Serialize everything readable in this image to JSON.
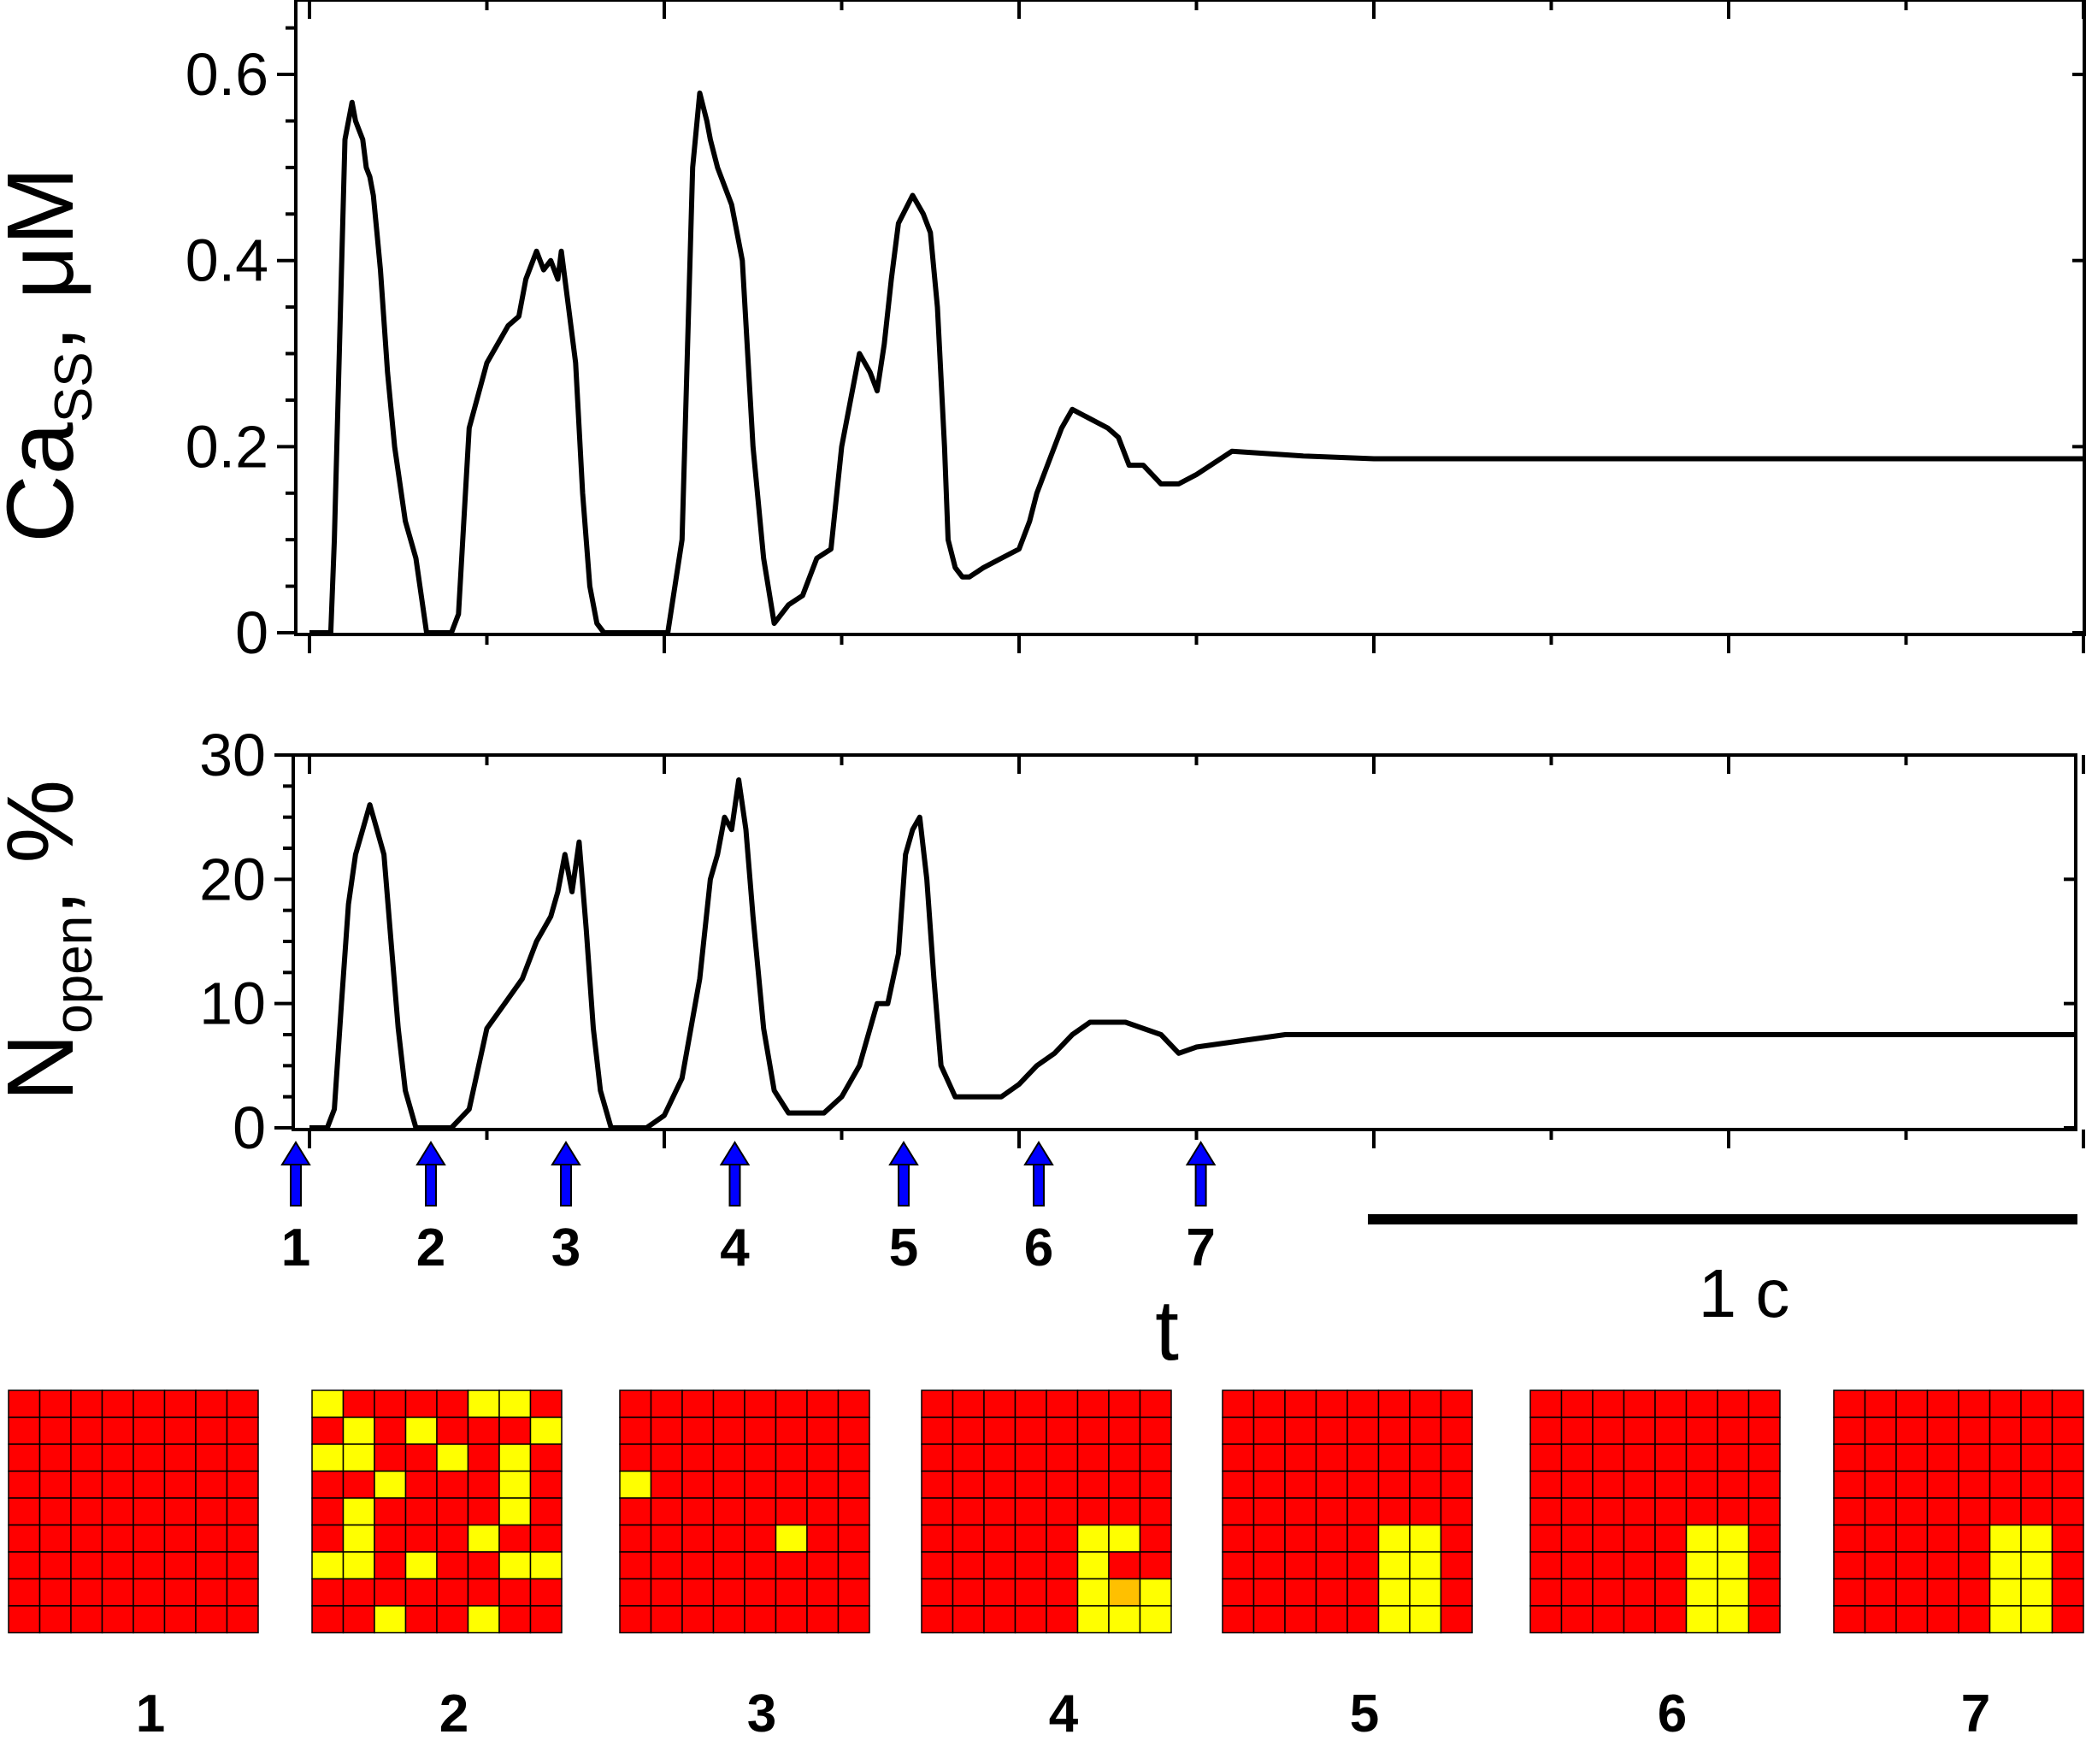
{
  "chart_data": [
    {
      "type": "line",
      "ylabel": {
        "main": "Ca",
        "sub": "SS",
        "suffix": ", μM"
      },
      "ylim": [
        0,
        0.68
      ],
      "yticks": [
        {
          "value": 0,
          "label": "0"
        },
        {
          "value": 0.2,
          "label": "0.2"
        },
        {
          "value": 0.4,
          "label": "0.4"
        },
        {
          "value": 0.6,
          "label": "0.6"
        }
      ],
      "xlim": [
        0,
        5
      ],
      "series": [
        {
          "x": [
            0.0,
            0.06,
            0.07,
            0.1,
            0.12,
            0.13,
            0.14,
            0.15,
            0.16,
            0.17,
            0.18,
            0.19,
            0.2,
            0.22,
            0.24,
            0.27,
            0.3,
            0.33,
            0.36,
            0.38,
            0.4,
            0.42,
            0.45,
            0.5,
            0.56,
            0.59,
            0.61,
            0.64,
            0.66,
            0.68,
            0.7,
            0.71,
            0.73,
            0.75,
            0.77,
            0.79,
            0.81,
            0.83,
            0.86,
            0.9,
            0.95,
            1.01,
            1.05,
            1.08,
            1.1,
            1.12,
            1.13,
            1.15,
            1.17,
            1.19,
            1.22,
            1.25,
            1.28,
            1.31,
            1.33,
            1.35,
            1.37,
            1.39,
            1.43,
            1.47,
            1.5,
            1.55,
            1.58,
            1.6,
            1.62,
            1.64,
            1.66,
            1.7,
            1.73,
            1.75,
            1.77,
            1.79,
            1.8,
            1.82,
            1.84,
            1.86,
            1.9,
            1.95,
            2.0,
            2.03,
            2.05,
            2.08,
            2.12,
            2.15,
            2.2,
            2.25,
            2.28,
            2.31,
            2.35,
            2.4,
            2.45,
            2.5,
            2.6,
            2.8,
            3.0,
            3.5,
            4.0,
            4.5,
            5.0
          ],
          "y": [
            0.0,
            0.0,
            0.1,
            0.53,
            0.57,
            0.55,
            0.54,
            0.53,
            0.5,
            0.49,
            0.47,
            0.43,
            0.39,
            0.28,
            0.2,
            0.12,
            0.08,
            0.0,
            0.0,
            0.0,
            0.0,
            0.02,
            0.22,
            0.29,
            0.33,
            0.34,
            0.38,
            0.41,
            0.39,
            0.4,
            0.38,
            0.41,
            0.35,
            0.29,
            0.15,
            0.05,
            0.01,
            0.0,
            0.0,
            0.0,
            0.0,
            0.0,
            0.1,
            0.5,
            0.58,
            0.55,
            0.53,
            0.5,
            0.48,
            0.46,
            0.4,
            0.2,
            0.08,
            0.01,
            0.02,
            0.03,
            0.035,
            0.04,
            0.08,
            0.09,
            0.2,
            0.3,
            0.28,
            0.26,
            0.31,
            0.38,
            0.44,
            0.47,
            0.45,
            0.43,
            0.35,
            0.2,
            0.1,
            0.07,
            0.06,
            0.06,
            0.07,
            0.08,
            0.09,
            0.12,
            0.15,
            0.18,
            0.22,
            0.24,
            0.23,
            0.22,
            0.21,
            0.18,
            0.18,
            0.16,
            0.16,
            0.17,
            0.195,
            0.19,
            0.187,
            0.187,
            0.187,
            0.187,
            0.187
          ]
        }
      ]
    },
    {
      "type": "line",
      "ylabel": {
        "main": "N",
        "sub": "open",
        "suffix": ", %"
      },
      "ylim": [
        0,
        30
      ],
      "yticks": [
        {
          "value": 0,
          "label": "0"
        },
        {
          "value": 10,
          "label": "10"
        },
        {
          "value": 20,
          "label": "20"
        },
        {
          "value": 30,
          "label": "30"
        }
      ],
      "xlim": [
        0,
        5
      ],
      "series": [
        {
          "x": [
            0.0,
            0.05,
            0.07,
            0.09,
            0.11,
            0.13,
            0.15,
            0.17,
            0.19,
            0.21,
            0.23,
            0.25,
            0.27,
            0.3,
            0.33,
            0.36,
            0.4,
            0.45,
            0.5,
            0.55,
            0.6,
            0.64,
            0.68,
            0.7,
            0.72,
            0.74,
            0.76,
            0.78,
            0.8,
            0.82,
            0.85,
            0.9,
            0.95,
            1.0,
            1.05,
            1.1,
            1.13,
            1.15,
            1.17,
            1.19,
            1.21,
            1.23,
            1.25,
            1.28,
            1.31,
            1.35,
            1.4,
            1.45,
            1.5,
            1.55,
            1.6,
            1.63,
            1.66,
            1.68,
            1.7,
            1.72,
            1.74,
            1.76,
            1.78,
            1.82,
            1.86,
            1.9,
            1.95,
            2.0,
            2.05,
            2.1,
            2.15,
            2.2,
            2.25,
            2.3,
            2.4,
            2.45,
            2.5,
            2.75,
            3.0,
            3.5,
            4.0,
            4.5,
            5.0
          ],
          "y": [
            0,
            0,
            1.5,
            10,
            18,
            22,
            24,
            26,
            24,
            22,
            15,
            8,
            3,
            0,
            0,
            0,
            0,
            1.5,
            8,
            10,
            12,
            15,
            17,
            19,
            22,
            19,
            23,
            16,
            8,
            3,
            0,
            0,
            0,
            1,
            4,
            12,
            20,
            22,
            25,
            24,
            28,
            24,
            17,
            8,
            3,
            1.2,
            1.2,
            1.2,
            2.5,
            5,
            10,
            10,
            14,
            22,
            24,
            25,
            20,
            12,
            5,
            2.5,
            2.5,
            2.5,
            2.5,
            3.5,
            5,
            6,
            7.5,
            8.5,
            8.5,
            8.5,
            7.5,
            6,
            6.5,
            7.5,
            7.5,
            7.5,
            7.5,
            7.5,
            7.5
          ]
        }
      ]
    }
  ],
  "markers": [
    {
      "label": "1",
      "x": 0.0
    },
    {
      "label": "2",
      "x": 0.4
    },
    {
      "label": "3",
      "x": 0.8
    },
    {
      "label": "4",
      "x": 1.3
    },
    {
      "label": "5",
      "x": 1.8
    },
    {
      "label": "6",
      "x": 2.2
    },
    {
      "label": "7",
      "x": 2.68
    }
  ],
  "x_axis_label": "t",
  "scale_bar_label": "1 c",
  "colors": {
    "closed": "#ff0000",
    "open": "#ffff00",
    "partial": "#ffc000",
    "arrow": "#0000ff",
    "line": "#000000"
  },
  "grids": [
    {
      "label": "1",
      "cells": [
        "00000000",
        "00000000",
        "00000000",
        "00000000",
        "00000000",
        "00000000",
        "00000000",
        "00000000",
        "00000000"
      ]
    },
    {
      "label": "2",
      "cells": [
        "10000110",
        "01010001",
        "11001010",
        "00100010",
        "01000010",
        "01000100",
        "11010011",
        "00000000",
        "00100100"
      ]
    },
    {
      "label": "3",
      "cells": [
        "00000000",
        "00000000",
        "00000000",
        "10000000",
        "00000000",
        "00000100",
        "00000000",
        "00000000",
        "00000000"
      ]
    },
    {
      "label": "4",
      "cells": [
        "00000000",
        "00000000",
        "00000000",
        "00000000",
        "00000000",
        "00000110",
        "00000100",
        "00000121",
        "00000111"
      ]
    },
    {
      "label": "5",
      "cells": [
        "00000000",
        "00000000",
        "00000000",
        "00000000",
        "00000000",
        "00000110",
        "00000110",
        "00000110",
        "00000110"
      ]
    },
    {
      "label": "6",
      "cells": [
        "00000000",
        "00000000",
        "00000000",
        "00000000",
        "00000000",
        "00000110",
        "00000110",
        "00000110",
        "00000110"
      ]
    },
    {
      "label": "7",
      "cells": [
        "00000000",
        "00000000",
        "00000000",
        "00000000",
        "00000000",
        "00000110",
        "00000110",
        "00000110",
        "00000110"
      ]
    }
  ]
}
